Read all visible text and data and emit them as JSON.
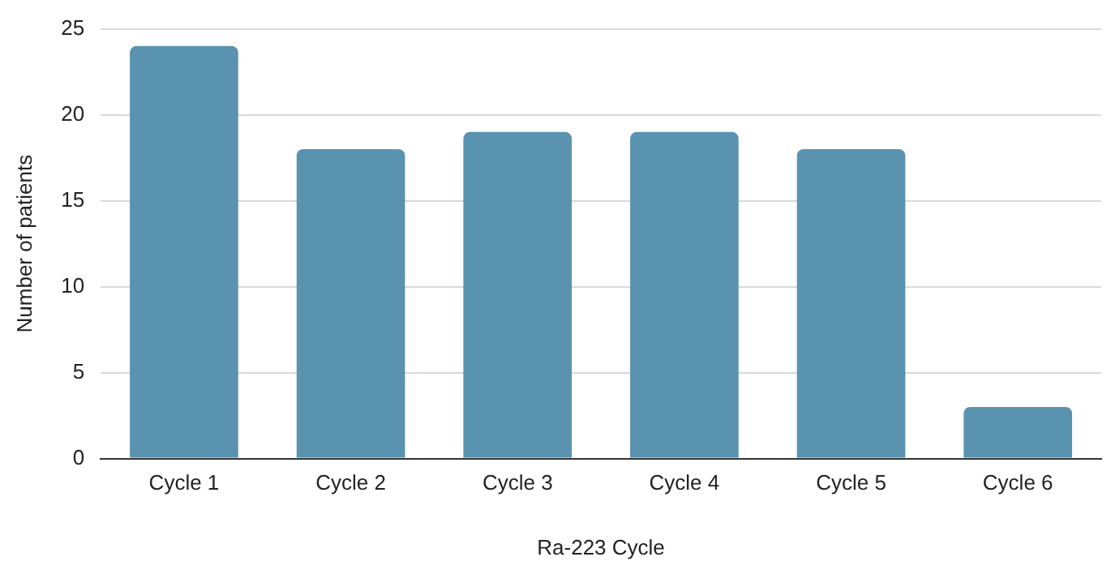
{
  "chart_data": {
    "type": "bar",
    "xlabel": "Ra-223 Cycle",
    "ylabel": "Number of patients",
    "categories": [
      "Cycle 1",
      "Cycle 2",
      "Cycle 3",
      "Cycle 4",
      "Cycle 5",
      "Cycle 6"
    ],
    "values": [
      24,
      18,
      19,
      19,
      18,
      3
    ],
    "color": "#5a93af",
    "ylim": [
      0,
      25
    ],
    "yticks": [
      0,
      5,
      10,
      15,
      20,
      25
    ],
    "grid": "y",
    "legend": false
  }
}
